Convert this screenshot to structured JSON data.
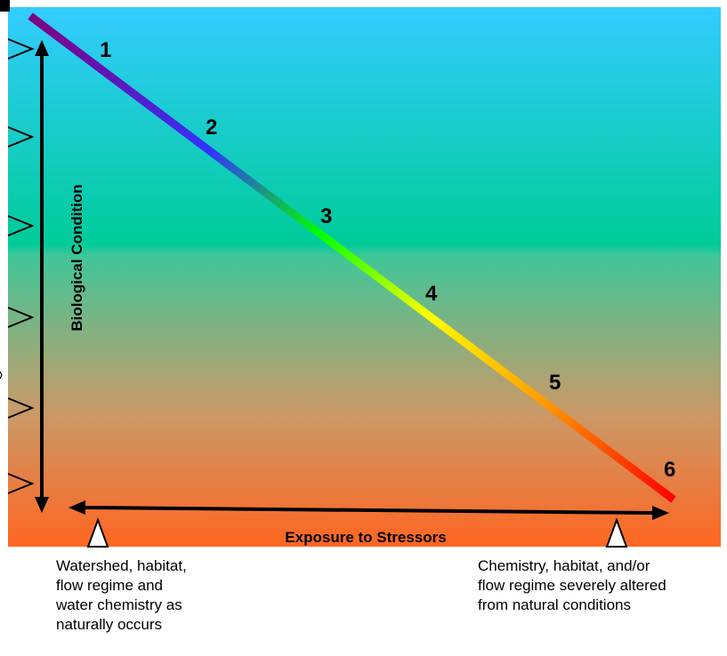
{
  "diagram": {
    "y_axis_label": "Biological Condition",
    "x_axis_label": "Exposure to Stressors",
    "tier_labels": [
      "1",
      "2",
      "3",
      "4",
      "5",
      "6"
    ],
    "left_caption": [
      "Watershed, habitat,",
      "flow regime and",
      "water chemistry as",
      "naturally occurs"
    ],
    "right_caption": [
      "Chemistry, habitat, and/or",
      "flow regime severely altered",
      "from natural conditions"
    ]
  },
  "colors": {
    "background_top": "#33ccff",
    "background_middle": "#00cc99",
    "background_bottom": "#ff6622",
    "gradient_line": [
      "#800080",
      "#3333ff",
      "#00ff00",
      "#ffff00",
      "#ff9900",
      "#ff0000"
    ],
    "arrows": "#000000"
  }
}
